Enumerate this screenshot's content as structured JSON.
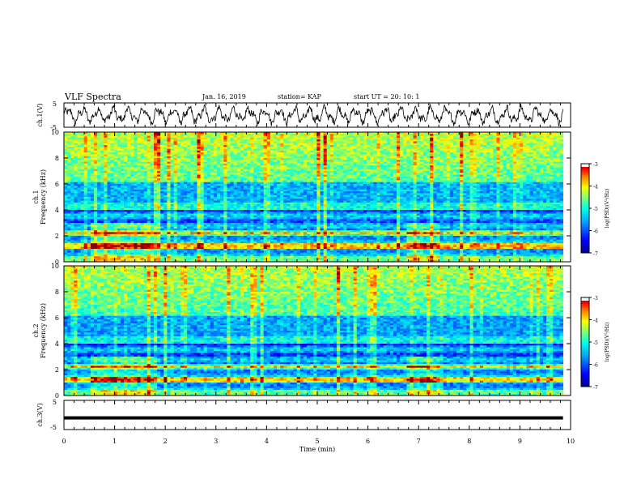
{
  "header": {
    "title": "VLF Spectra",
    "date": "Jan. 16, 2019",
    "station": "station= KAP",
    "start": "start UT = 20: 10: 1"
  },
  "colors": {
    "colormap": [
      "#00009f",
      "#0000ff",
      "#009fff",
      "#00ffff",
      "#7fff7f",
      "#ffff00",
      "#ff7f00",
      "#ff0000",
      "#7f0000",
      "#ffffff"
    ],
    "trace": "#000000"
  },
  "chart_data": [
    {
      "type": "line",
      "panel": "ch1-waveform",
      "ylabel": "ch.1(V)",
      "ylim": [
        -5,
        5
      ],
      "yticks": [
        "5",
        "-5"
      ],
      "xlim": [
        0,
        10
      ],
      "x_range_min": [
        0,
        9.85
      ],
      "description_values": "oscillating signal roughly between -3 and +3 V"
    },
    {
      "type": "heatmap",
      "panel": "ch1-spectrogram",
      "ylabel": "ch.1\nFrequency (kHz)",
      "ylim": [
        0,
        10
      ],
      "yticks": [
        "0",
        "2",
        "4",
        "6",
        "8",
        "10"
      ],
      "xlim": [
        0,
        10
      ],
      "colorbar": {
        "label": "log(PSD)(V²/Hz)",
        "range": [
          -7,
          -3
        ],
        "ticks": [
          "-3",
          "-4",
          "-5",
          "-6",
          "-7"
        ]
      }
    },
    {
      "type": "heatmap",
      "panel": "ch2-spectrogram",
      "ylabel": "ch.2\nFrequency (kHz)",
      "ylim": [
        0,
        10
      ],
      "yticks": [
        "0",
        "2",
        "4",
        "6",
        "8",
        "10"
      ],
      "xlim": [
        0,
        10
      ],
      "colorbar": {
        "label": "log(PSD)(V²/Hz)",
        "range": [
          -7,
          -3
        ],
        "ticks": [
          "-3",
          "-4",
          "-5",
          "-6",
          "-7"
        ]
      }
    },
    {
      "type": "line",
      "panel": "ch3-waveform",
      "ylabel": "ch.3(V)",
      "ylim": [
        -5,
        5
      ],
      "yticks": [
        "5",
        "-5"
      ],
      "xlim": [
        0,
        10
      ],
      "values_note": "flat trace at about -1 V",
      "level": -1
    }
  ],
  "xaxis": {
    "label": "Time (min)",
    "ticks": [
      "0",
      "1",
      "2",
      "3",
      "4",
      "5",
      "6",
      "7",
      "8",
      "9",
      "10"
    ]
  }
}
